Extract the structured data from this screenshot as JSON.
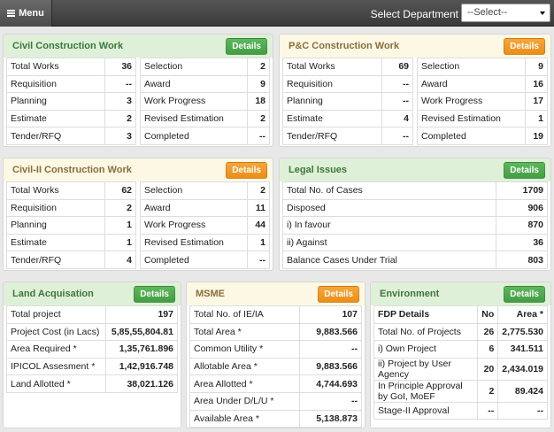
{
  "topbar": {
    "menu_label": "Menu",
    "dept_label": "Select Department",
    "dept_value": "--Select--"
  },
  "details_label": "Details",
  "civil": {
    "title": "Civil Construction Work",
    "left": [
      [
        "Total Works",
        "36"
      ],
      [
        "Requisition",
        "--"
      ],
      [
        "Planning",
        "3"
      ],
      [
        "Estimate",
        "2"
      ],
      [
        "Tender/RFQ",
        "3"
      ]
    ],
    "right": [
      [
        "Selection",
        "2"
      ],
      [
        "Award",
        "9"
      ],
      [
        "Work Progress",
        "18"
      ],
      [
        "Revised Estimation",
        "2"
      ],
      [
        "Completed",
        "--"
      ]
    ]
  },
  "pc": {
    "title": "P&C Construction Work",
    "left": [
      [
        "Total Works",
        "69"
      ],
      [
        "Requisition",
        "--"
      ],
      [
        "Planning",
        "--"
      ],
      [
        "Estimate",
        "4"
      ],
      [
        "Tender/RFQ",
        "--"
      ]
    ],
    "right": [
      [
        "Selection",
        "9"
      ],
      [
        "Award",
        "16"
      ],
      [
        "Work Progress",
        "17"
      ],
      [
        "Revised Estimation",
        "1"
      ],
      [
        "Completed",
        "19"
      ]
    ]
  },
  "civil2": {
    "title": "Civil-II Construction Work",
    "left": [
      [
        "Total Works",
        "62"
      ],
      [
        "Requisition",
        "2"
      ],
      [
        "Planning",
        "1"
      ],
      [
        "Estimate",
        "1"
      ],
      [
        "Tender/RFQ",
        "4"
      ]
    ],
    "right": [
      [
        "Selection",
        "2"
      ],
      [
        "Award",
        "11"
      ],
      [
        "Work Progress",
        "44"
      ],
      [
        "Revised Estimation",
        "1"
      ],
      [
        "Completed",
        "--"
      ]
    ]
  },
  "legal": {
    "title": "Legal Issues",
    "rows": [
      [
        "Total No. of Cases",
        "1709"
      ],
      [
        "Disposed",
        "906"
      ],
      [
        "i) In favour",
        "870"
      ],
      [
        "ii) Against",
        "36"
      ],
      [
        "Balance Cases Under Trial",
        "803"
      ]
    ]
  },
  "land": {
    "title": "Land Acquisation",
    "rows": [
      [
        "Total project",
        "197"
      ],
      [
        "Project Cost (in Lacs)",
        "5,85,55,804.81"
      ],
      [
        "Area Required *",
        "1,35,761.896"
      ],
      [
        "IPICOL Assesment *",
        "1,42,916.748"
      ],
      [
        "Land Allotted *",
        "38,021.126"
      ]
    ]
  },
  "msme": {
    "title": "MSME",
    "rows": [
      [
        "Total No. of IE/IA",
        "107"
      ],
      [
        "Total Area *",
        "9,883.566"
      ],
      [
        "Common Utility *",
        "--"
      ],
      [
        "Allotable Area *",
        "9,883.566"
      ],
      [
        "Area Allotted *",
        "4,744.693"
      ],
      [
        "Area Under D/L/U *",
        "--"
      ],
      [
        "Available Area *",
        "5,138.873"
      ]
    ]
  },
  "env": {
    "title": "Environment",
    "headers": [
      "FDP Details",
      "No",
      "Area *"
    ],
    "rows": [
      [
        "Total No. of Projects",
        "26",
        "2,775.530"
      ],
      [
        "i) Own Project",
        "6",
        "341.511"
      ],
      [
        "ii) Project by User Agency",
        "20",
        "2,434.019"
      ],
      [
        "In Principle Approval by GoI, MoEF",
        "2",
        "89.424"
      ],
      [
        "Stage-II Approval",
        "--",
        "--"
      ]
    ]
  }
}
